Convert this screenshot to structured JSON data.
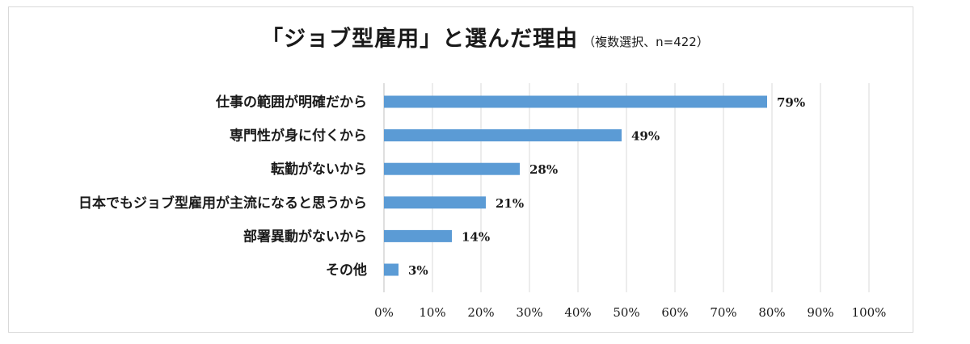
{
  "chart_data": {
    "type": "bar",
    "orientation": "horizontal",
    "title": "「ジョブ型雇用」と選んだ理由",
    "subtitle": "（複数選択、n=422）",
    "categories": [
      "仕事の範囲が明確だから",
      "専門性が身に付くから",
      "転勤がないから",
      "日本でもジョブ型雇用が主流になると思うから",
      "部署異動がないから",
      "その他"
    ],
    "values": [
      79,
      49,
      28,
      21,
      14,
      3
    ],
    "value_labels": [
      "79%",
      "49%",
      "28%",
      "21%",
      "14%",
      "3%"
    ],
    "xlim": [
      0,
      100
    ],
    "xticks": [
      "0%",
      "10%",
      "20%",
      "30%",
      "40%",
      "50%",
      "60%",
      "70%",
      "80%",
      "90%",
      "100%"
    ],
    "grid": true,
    "bar_color": "#5b9bd5"
  }
}
